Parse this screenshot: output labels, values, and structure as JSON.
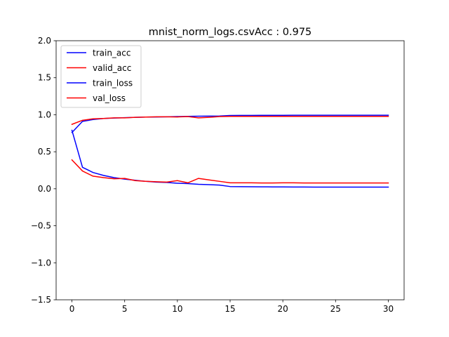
{
  "chart_data": {
    "type": "line",
    "title": "mnist_norm_logs.csvAcc : 0.975",
    "xlabel": "",
    "ylabel": "",
    "xlim": [
      -1.5,
      31.5
    ],
    "ylim": [
      -1.5,
      2.0
    ],
    "xticks": [
      0,
      5,
      10,
      15,
      20,
      25,
      30
    ],
    "yticks": [
      -1.5,
      -1.0,
      -0.5,
      0.0,
      0.5,
      1.0,
      1.5,
      2.0
    ],
    "ytick_labels": [
      "−1.5",
      "−1.0",
      "−0.5",
      "0.0",
      "0.5",
      "1.0",
      "1.5",
      "2.0"
    ],
    "grid": false,
    "legend_position": "top-left",
    "x": [
      0,
      1,
      2,
      3,
      4,
      5,
      6,
      7,
      8,
      9,
      10,
      11,
      12,
      13,
      14,
      15,
      16,
      17,
      18,
      19,
      20,
      21,
      22,
      23,
      24,
      25,
      26,
      27,
      28,
      29,
      30
    ],
    "series": [
      {
        "name": "train_acc",
        "color": "#0000ff",
        "values": [
          0.76,
          0.91,
          0.935,
          0.95,
          0.955,
          0.96,
          0.965,
          0.968,
          0.97,
          0.972,
          0.975,
          0.978,
          0.98,
          0.982,
          0.983,
          0.99,
          0.991,
          0.991,
          0.992,
          0.992,
          0.992,
          0.993,
          0.993,
          0.993,
          0.993,
          0.993,
          0.993,
          0.993,
          0.993,
          0.993,
          0.993
        ]
      },
      {
        "name": "valid_acc",
        "color": "#ff0000",
        "values": [
          0.87,
          0.925,
          0.945,
          0.95,
          0.958,
          0.958,
          0.965,
          0.968,
          0.972,
          0.972,
          0.97,
          0.975,
          0.958,
          0.965,
          0.975,
          0.978,
          0.978,
          0.978,
          0.978,
          0.978,
          0.978,
          0.978,
          0.978,
          0.978,
          0.978,
          0.978,
          0.978,
          0.978,
          0.978,
          0.978,
          0.978
        ]
      },
      {
        "name": "train_loss",
        "color": "#0000ff",
        "values": [
          0.79,
          0.29,
          0.22,
          0.18,
          0.15,
          0.13,
          0.115,
          0.1,
          0.09,
          0.085,
          0.075,
          0.07,
          0.06,
          0.055,
          0.05,
          0.03,
          0.028,
          0.027,
          0.026,
          0.025,
          0.025,
          0.024,
          0.023,
          0.022,
          0.022,
          0.022,
          0.022,
          0.022,
          0.022,
          0.022,
          0.022
        ]
      },
      {
        "name": "val_loss",
        "color": "#ff0000",
        "values": [
          0.39,
          0.24,
          0.17,
          0.15,
          0.135,
          0.14,
          0.11,
          0.1,
          0.095,
          0.09,
          0.11,
          0.08,
          0.14,
          0.12,
          0.1,
          0.08,
          0.08,
          0.08,
          0.078,
          0.078,
          0.08,
          0.08,
          0.078,
          0.078,
          0.078,
          0.078,
          0.078,
          0.078,
          0.078,
          0.078,
          0.078
        ]
      }
    ]
  }
}
